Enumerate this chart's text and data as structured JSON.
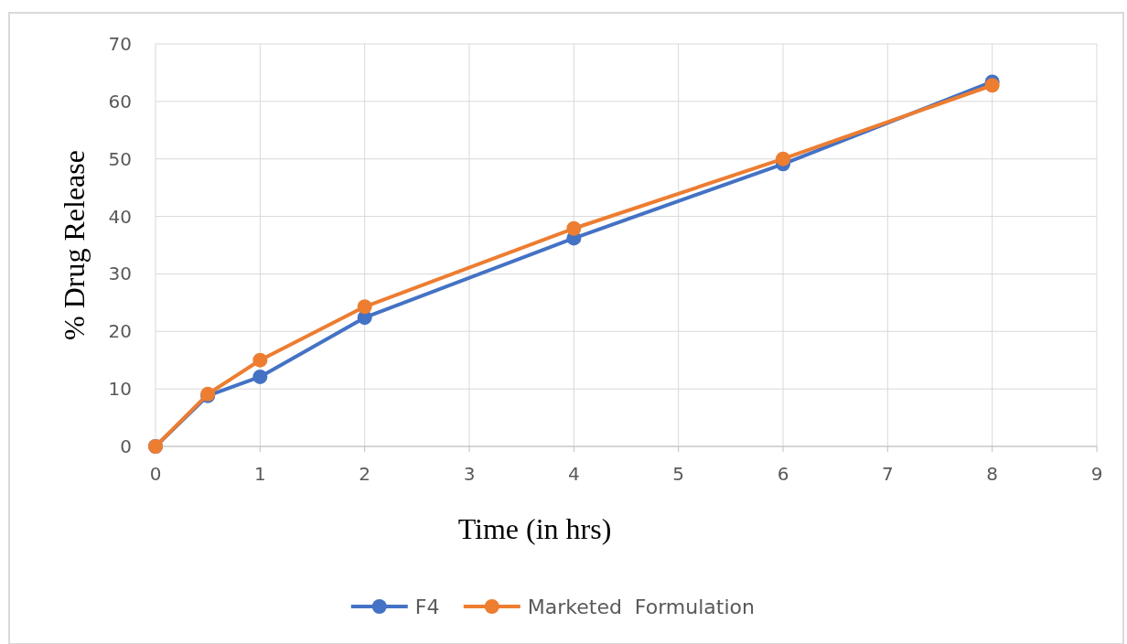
{
  "chart_data": {
    "type": "line",
    "xlabel": "Time (in hrs)",
    "ylabel": "% Drug Release",
    "x": [
      0,
      0.5,
      1,
      2,
      4,
      6,
      8
    ],
    "series": [
      {
        "name": "F4",
        "color": "#4472c4",
        "values": [
          0,
          8.8,
          12.1,
          22.4,
          36.2,
          49.1,
          63.4
        ]
      },
      {
        "name": "Marketed  Formulation",
        "color": "#ed7d31",
        "values": [
          0,
          9.1,
          15,
          24.3,
          37.9,
          50,
          62.8
        ]
      }
    ],
    "xlim": [
      0,
      9
    ],
    "xticks": [
      0,
      1,
      2,
      3,
      4,
      5,
      6,
      7,
      8,
      9
    ],
    "ylim": [
      0,
      70
    ],
    "yticks": [
      0,
      10,
      20,
      30,
      40,
      50,
      60,
      70
    ],
    "grid": true,
    "legend": "bottom",
    "marker": "circle",
    "line_style": "solid"
  }
}
